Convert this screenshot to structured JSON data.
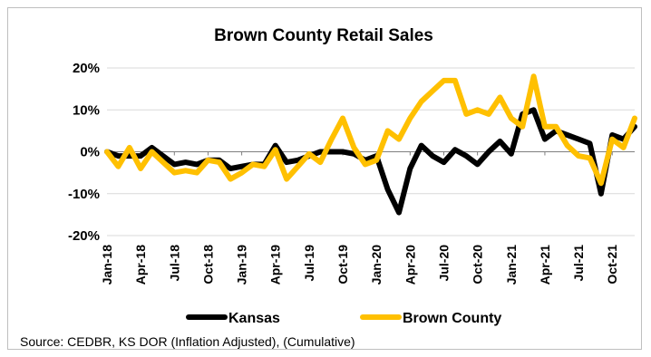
{
  "chart_data": {
    "type": "line",
    "title": "Brown County Retail Sales",
    "source": "Source: CEDBR, KS DOR (Inflation Adjusted), (Cumulative)",
    "ylim": [
      -20,
      20
    ],
    "y_ticks": [
      -20,
      -10,
      0,
      10,
      20
    ],
    "y_tick_labels": [
      "-20%",
      "-10%",
      "0%",
      "10%",
      "20%"
    ],
    "x_tick_labels": [
      "Jan-18",
      "Apr-18",
      "Jul-18",
      "Oct-18",
      "Jan-19",
      "Apr-19",
      "Jul-19",
      "Oct-19",
      "Jan-20",
      "Apr-20",
      "Jul-20",
      "Oct-20",
      "Jan-21",
      "Apr-21",
      "Jul-21",
      "Oct-21"
    ],
    "grid": true,
    "legend_position": "bottom",
    "series": [
      {
        "name": "Kansas",
        "color": "#000000",
        "values": [
          0,
          -1,
          -1,
          -1,
          1,
          -1,
          -3,
          -2.5,
          -3,
          -2,
          -2,
          -4,
          -3.5,
          -3,
          -3,
          1.5,
          -2.5,
          -2,
          -1,
          0,
          0,
          0,
          -0.5,
          -2,
          -1,
          -9,
          -14.5,
          -4,
          1.5,
          -1,
          -2.5,
          0.5,
          -1,
          -3,
          0,
          2.5,
          -0.5,
          9,
          10,
          3,
          5,
          4,
          3,
          2,
          -10,
          4,
          3,
          6
        ]
      },
      {
        "name": "Brown County",
        "color": "#FFC000",
        "values": [
          0,
          -3.5,
          1,
          -4,
          0,
          -2.5,
          -5,
          -4.5,
          -5,
          -2,
          -2.5,
          -6.5,
          -5,
          -3,
          -3.5,
          0.5,
          -6.5,
          -3.5,
          -0.5,
          -2.5,
          3,
          8,
          1,
          -3,
          -2,
          5,
          3,
          8,
          12,
          14.5,
          17,
          17,
          9,
          10,
          9,
          13,
          8,
          6,
          18,
          6,
          6,
          1.5,
          -1,
          -1.5,
          -7.5,
          3,
          1,
          8
        ]
      }
    ]
  }
}
